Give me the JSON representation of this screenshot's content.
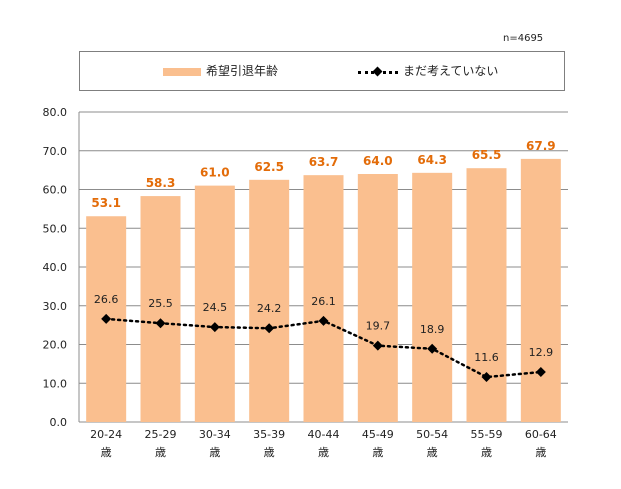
{
  "note": "n=4695",
  "chart_data": {
    "type": "bar",
    "categories": [
      "20-24",
      "25-29",
      "30-34",
      "35-39",
      "40-44",
      "45-49",
      "50-54",
      "55-59",
      "60-64"
    ],
    "category_suffix": "歳",
    "series": [
      {
        "name": "希望引退年齢",
        "kind": "bar",
        "color": "#fabf8f",
        "label_color": "#e36c09",
        "values": [
          53.1,
          58.3,
          61.0,
          62.5,
          63.7,
          64.0,
          64.3,
          65.5,
          67.9
        ],
        "labels": [
          "53.1",
          "58.3",
          "61.0",
          "62.5",
          "63.7",
          "64.0",
          "64.3",
          "65.5",
          "67.9"
        ]
      },
      {
        "name": "まだ考えていない",
        "kind": "line",
        "color": "#000000",
        "style": "dotted",
        "marker": "diamond",
        "values": [
          26.6,
          25.5,
          24.5,
          24.2,
          26.1,
          19.7,
          18.9,
          11.6,
          12.9
        ],
        "labels": [
          "26.6",
          "25.5",
          "24.5",
          "24.2",
          "26.1",
          "19.7",
          "18.9",
          "11.6",
          "12.9"
        ]
      }
    ],
    "ylim": [
      0,
      80
    ],
    "yticks": [
      "0.0",
      "10.0",
      "20.0",
      "30.0",
      "40.0",
      "50.0",
      "60.0",
      "70.0",
      "80.0"
    ],
    "grid": true,
    "legend": "top"
  }
}
